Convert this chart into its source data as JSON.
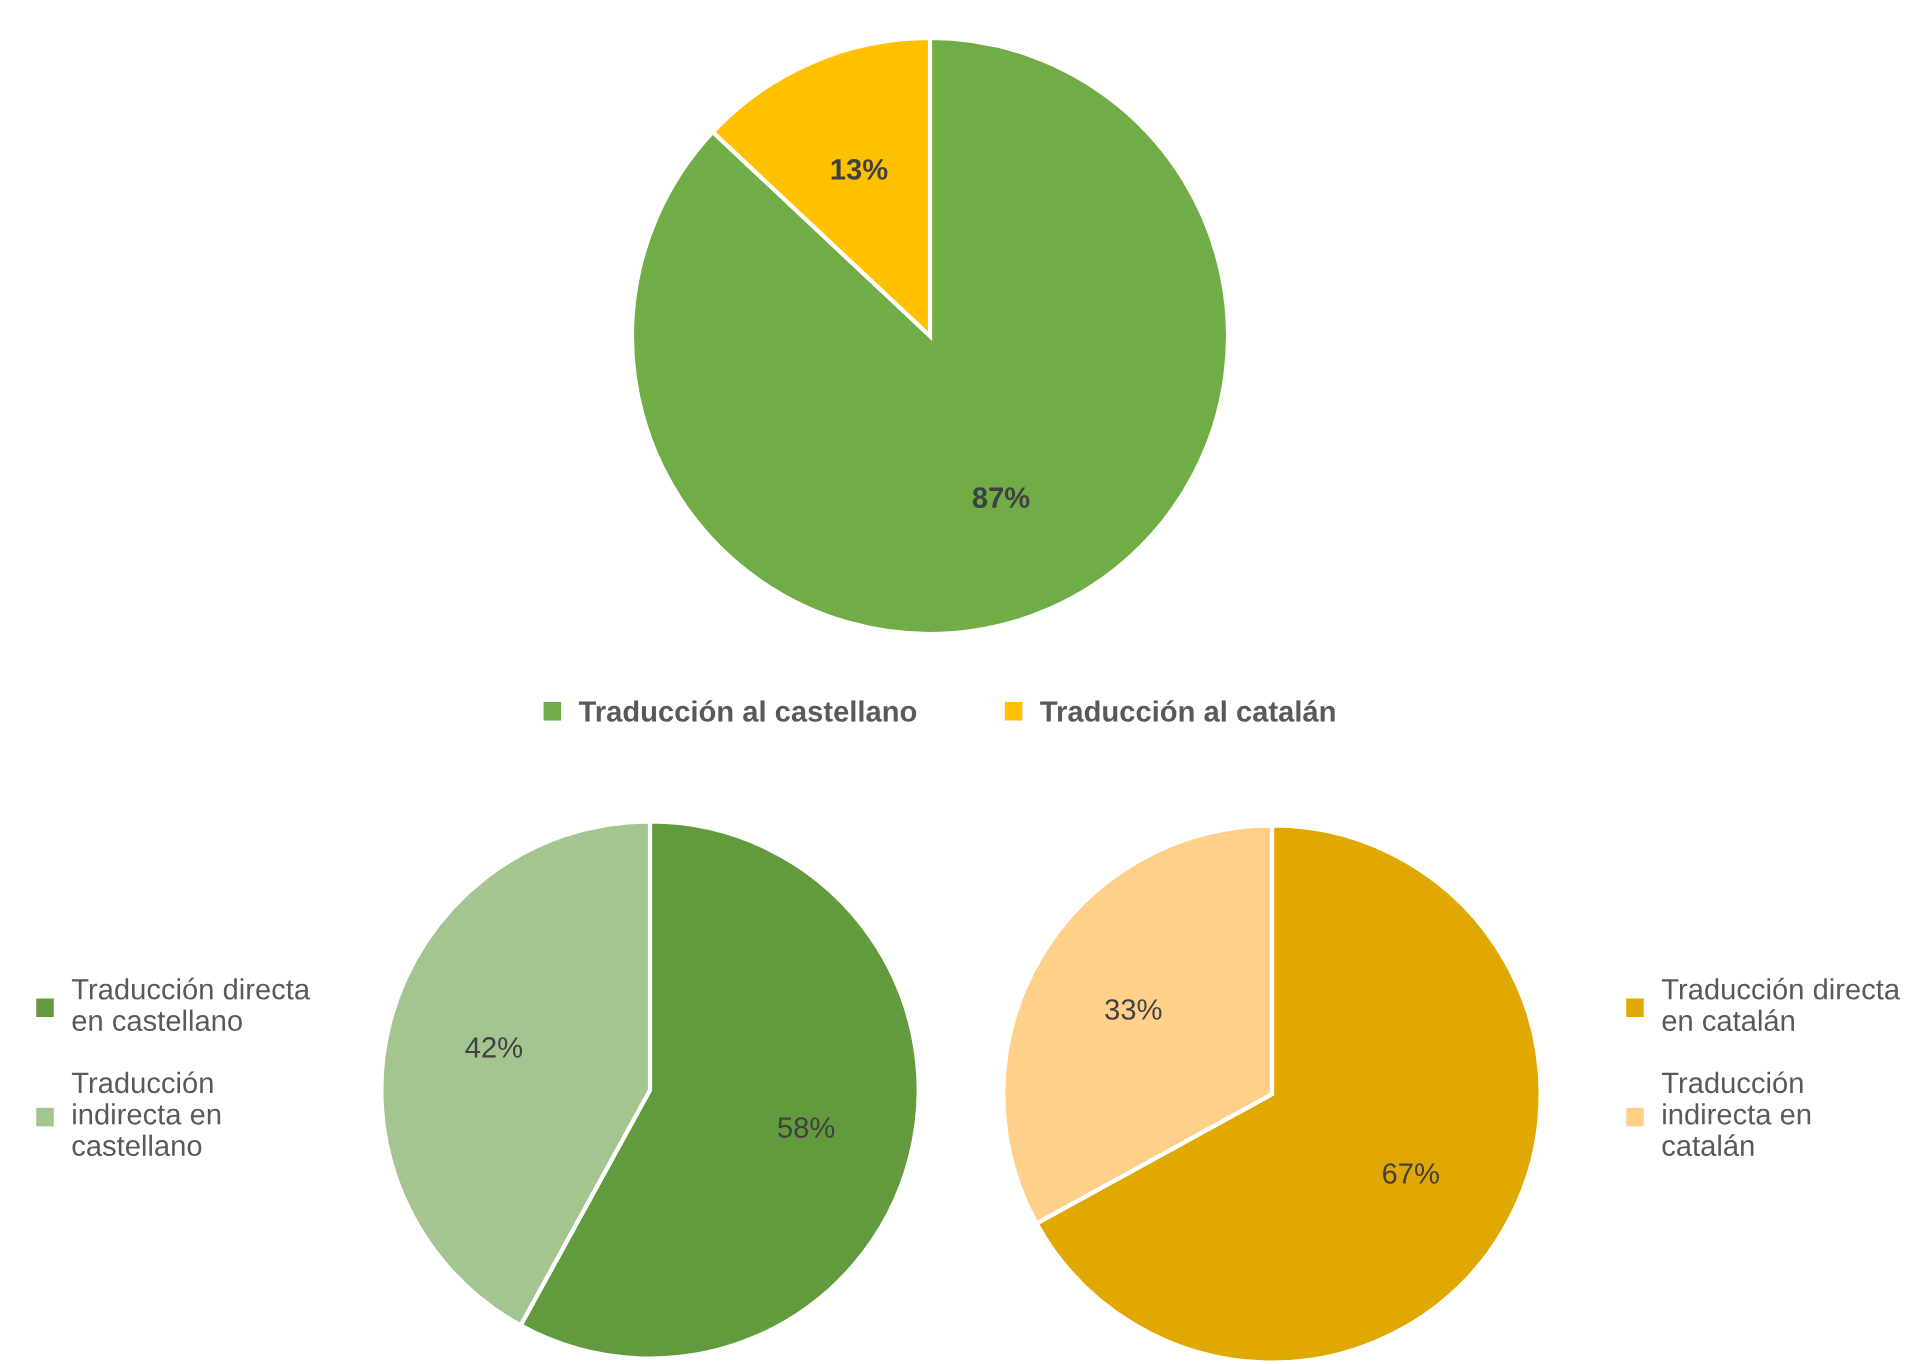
{
  "chart_data": [
    {
      "type": "pie",
      "categories": [
        "Traducción al castellano",
        "Traducción al catalán"
      ],
      "values": [
        87,
        13
      ],
      "value_labels": [
        "87%",
        "13%"
      ],
      "colors": [
        "#70ad47",
        "#ffc000"
      ],
      "legend": "bottom"
    },
    {
      "type": "pie",
      "categories": [
        "Traducción directa\nen castellano",
        "Traducción\nindirecta en\ncastellano"
      ],
      "values": [
        58,
        42
      ],
      "value_labels": [
        "58%",
        "42%"
      ],
      "colors": [
        "#629a3e",
        "#a4c490"
      ],
      "legend": "left"
    },
    {
      "type": "pie",
      "categories": [
        "Traducción directa\nen catalán",
        "Traducción\nindirecta en\ncatalán"
      ],
      "values": [
        67,
        33
      ],
      "value_labels": [
        "67%",
        "33%"
      ],
      "colors": [
        "#e0a800",
        "#ffd08a"
      ],
      "legend": "right"
    }
  ]
}
